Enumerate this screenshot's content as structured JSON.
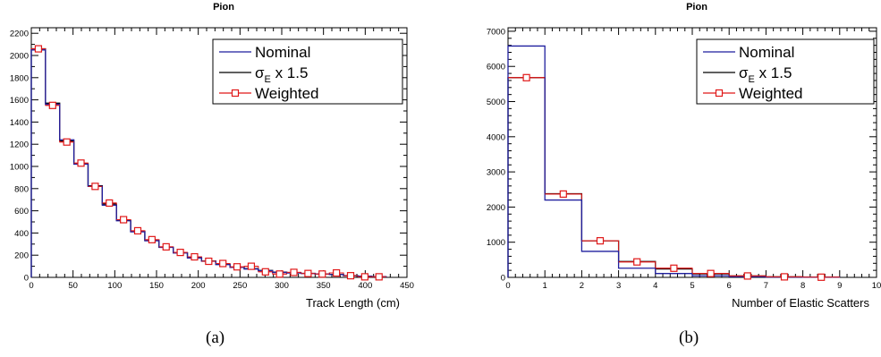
{
  "colors": {
    "nominal": "#1f1f9e",
    "sigma": "#000000",
    "weighted": "#e01818",
    "axis": "#000000"
  },
  "captions": [
    "(a)",
    "(b)"
  ],
  "chart_data": [
    {
      "type": "bar",
      "title": "Pion",
      "xlabel": "Track Length (cm)",
      "ylabel": "",
      "xlim": [
        0,
        450
      ],
      "ylim": [
        0,
        2250
      ],
      "xticks": [
        0,
        50,
        100,
        150,
        200,
        250,
        300,
        350,
        400,
        450
      ],
      "yticks": [
        0,
        200,
        400,
        600,
        800,
        1000,
        1200,
        1400,
        1600,
        1800,
        2000,
        2200
      ],
      "bin_edges": [
        0,
        17,
        34,
        51,
        68,
        85,
        102,
        119,
        136,
        153,
        170,
        187,
        204,
        221,
        238,
        255,
        272,
        289,
        306,
        323,
        340,
        357,
        374,
        391,
        408,
        425
      ],
      "legend_position": "top-right",
      "legend": [
        {
          "label": "Nominal",
          "style": "line"
        },
        {
          "label_main": "σ",
          "label_sub": "E",
          "label_rest": " x 1.5",
          "style": "line"
        },
        {
          "label": "Weighted",
          "style": "marker"
        }
      ],
      "series": [
        {
          "name": "Nominal",
          "values": [
            2050,
            1560,
            1240,
            1020,
            820,
            650,
            510,
            410,
            330,
            270,
            220,
            175,
            145,
            115,
            90,
            75,
            60,
            45,
            40,
            35,
            30,
            25,
            15,
            10,
            5
          ]
        },
        {
          "name": "σE x 1.5",
          "values": [
            2060,
            1570,
            1230,
            1025,
            825,
            660,
            515,
            415,
            335,
            272,
            222,
            180,
            147,
            118,
            92,
            78,
            62,
            47,
            42,
            36,
            31,
            26,
            16,
            11,
            6
          ]
        },
        {
          "name": "Weighted",
          "values": [
            2060,
            1550,
            1220,
            1030,
            820,
            670,
            520,
            420,
            340,
            275,
            225,
            185,
            145,
            125,
            95,
            100,
            50,
            30,
            45,
            35,
            30,
            40,
            15,
            5,
            5
          ]
        }
      ]
    },
    {
      "type": "bar",
      "title": "Pion",
      "xlabel": "Number of Elastic Scatters",
      "ylabel": "",
      "xlim": [
        0,
        10
      ],
      "ylim": [
        0,
        7100
      ],
      "xticks": [
        0,
        1,
        2,
        3,
        4,
        5,
        6,
        7,
        8,
        9,
        10
      ],
      "yticks": [
        0,
        1000,
        2000,
        3000,
        4000,
        5000,
        6000,
        7000
      ],
      "bin_edges": [
        0,
        1,
        2,
        3,
        4,
        5,
        6,
        7,
        8,
        9
      ],
      "legend_position": "top-right",
      "legend": [
        {
          "label": "Nominal",
          "style": "line"
        },
        {
          "label_main": "σ",
          "label_sub": "E",
          "label_rest": " x 1.5",
          "style": "line"
        },
        {
          "label": "Weighted",
          "style": "marker"
        }
      ],
      "series": [
        {
          "name": "Nominal",
          "values": [
            6580,
            2200,
            740,
            260,
            110,
            45,
            20,
            8,
            3
          ]
        },
        {
          "name": "σE x 1.5",
          "values": [
            5680,
            2380,
            1040,
            450,
            240,
            100,
            40,
            15,
            5
          ]
        },
        {
          "name": "Weighted",
          "values": [
            5680,
            2370,
            1040,
            440,
            260,
            110,
            40,
            15,
            5
          ]
        }
      ]
    }
  ]
}
